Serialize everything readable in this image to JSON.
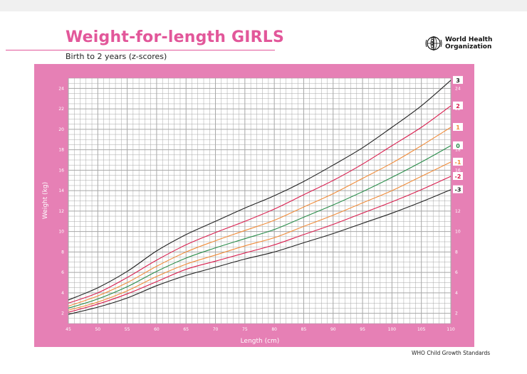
{
  "header": {
    "title": "Weight-for-length GIRLS",
    "subtitle": "Birth to 2 years (z-scores)"
  },
  "logo": {
    "icon": "who-emblem-icon",
    "line1": "World Health",
    "line2": "Organization"
  },
  "footer": {
    "text": "WHO Child Growth Standards"
  },
  "colors": {
    "frame": "#e680b5",
    "grid": "#a7a7a7",
    "z3": "#222222",
    "z2": "#d91e4e",
    "z1": "#f08c3a",
    "z0": "#2a8c4a"
  },
  "chart_data": {
    "type": "line",
    "xlabel": "Length (cm)",
    "ylabel": "Weight (kg)",
    "xlim": [
      45,
      110
    ],
    "ylim": [
      1,
      25
    ],
    "grid": true,
    "x_ticks": [
      45,
      50,
      55,
      60,
      65,
      70,
      75,
      80,
      85,
      90,
      95,
      100,
      105,
      110
    ],
    "y_ticks": [
      2,
      4,
      6,
      8,
      10,
      12,
      14,
      16,
      18,
      20,
      22,
      24
    ],
    "x": [
      45,
      50,
      55,
      60,
      65,
      70,
      75,
      80,
      85,
      90,
      95,
      100,
      105,
      110
    ],
    "series": [
      {
        "name": "3",
        "color": "#222222",
        "values": [
          3.3,
          4.5,
          6.1,
          8.1,
          9.7,
          11.0,
          12.3,
          13.5,
          14.9,
          16.5,
          18.2,
          20.2,
          22.3,
          24.8
        ]
      },
      {
        "name": "2",
        "color": "#d91e4e",
        "values": [
          3.0,
          4.0,
          5.5,
          7.2,
          8.7,
          9.9,
          11.0,
          12.2,
          13.6,
          15.0,
          16.6,
          18.4,
          20.2,
          22.3
        ]
      },
      {
        "name": "1",
        "color": "#f08c3a",
        "values": [
          2.7,
          3.7,
          5.0,
          6.6,
          8.0,
          9.1,
          10.1,
          11.1,
          12.4,
          13.7,
          15.2,
          16.7,
          18.4,
          20.2
        ]
      },
      {
        "name": "0",
        "color": "#2a8c4a",
        "values": [
          2.5,
          3.4,
          4.6,
          6.1,
          7.4,
          8.4,
          9.3,
          10.2,
          11.4,
          12.6,
          13.9,
          15.3,
          16.8,
          18.4
        ]
      },
      {
        "name": "-1",
        "color": "#f08c3a",
        "values": [
          2.3,
          3.1,
          4.2,
          5.6,
          6.8,
          7.7,
          8.6,
          9.4,
          10.5,
          11.6,
          12.8,
          14.0,
          15.4,
          16.8
        ]
      },
      {
        "name": "-2",
        "color": "#d91e4e",
        "values": [
          2.1,
          2.9,
          3.9,
          5.1,
          6.3,
          7.1,
          7.9,
          8.7,
          9.7,
          10.7,
          11.8,
          12.9,
          14.1,
          15.4
        ]
      },
      {
        "name": "-3",
        "color": "#222222",
        "values": [
          1.9,
          2.6,
          3.5,
          4.7,
          5.7,
          6.5,
          7.3,
          8.0,
          8.9,
          9.8,
          10.8,
          11.8,
          12.9,
          14.1
        ]
      }
    ]
  }
}
